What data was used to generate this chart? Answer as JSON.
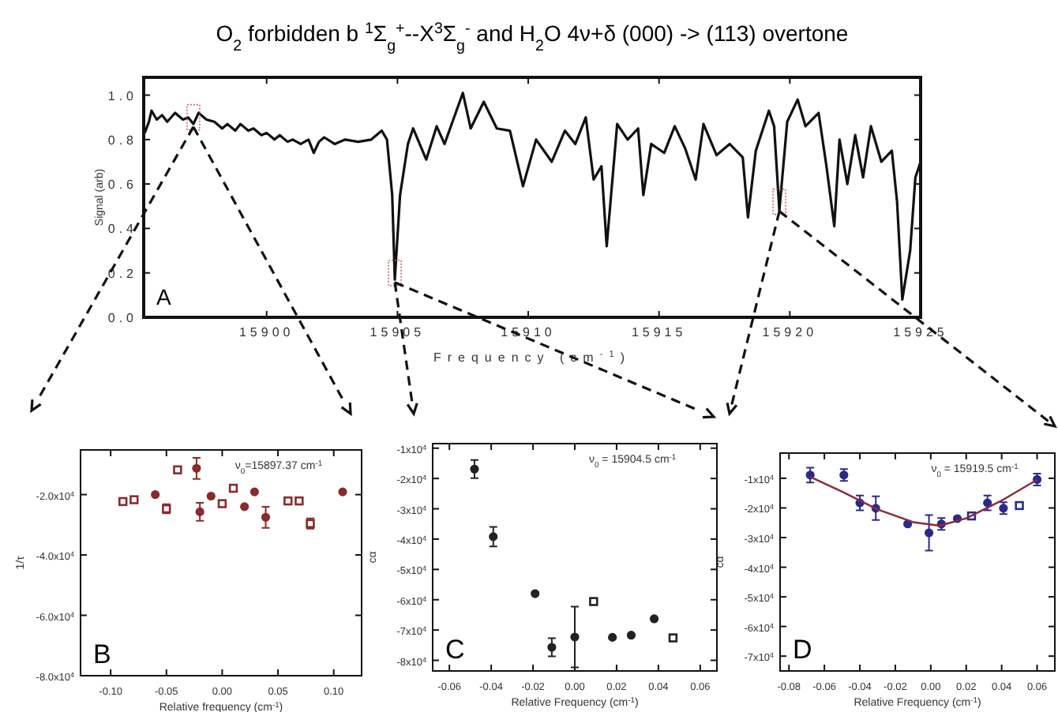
{
  "chart_data": [
    {
      "type": "line",
      "title": "O$_{2}$ forbidden b $^{1}$Σ$_{g}$$^{+}$--X$^{3}$Σ$_{g}$$^{-}$ and H$_{2}$O 4ν+δ  (000) -> (113) overtone",
      "xlabel": "Frequency (cm$^{-1}$)",
      "ylabel": "Signal (arb)",
      "xlim": [
        15895.3,
        15925
      ],
      "ylim": [
        0,
        1.08
      ],
      "xticks": [
        15900,
        15905,
        15910,
        15915,
        15920,
        15925
      ],
      "yticks": [
        {
          "value": 0,
          "label": "0.0"
        },
        {
          "value": 0.2,
          "label": "0.2"
        },
        {
          "value": 0.4,
          "label": "0.4"
        },
        {
          "value": 0.6,
          "label": "0.6"
        },
        {
          "value": 0.8,
          "label": "0.8"
        },
        {
          "value": 1,
          "label": "1.0"
        }
      ],
      "grid": false,
      "line_style": "solid",
      "annotations": [
        "A"
      ],
      "series": [
        {
          "color": "#111111",
          "x": [
            15895.34,
            15895.5,
            15895.6,
            15895.8,
            15896.0,
            15896.2,
            15896.5,
            15896.8,
            15897.0,
            15897.2,
            15897.4,
            15897.7,
            15898.0,
            15898.3,
            15898.5,
            15898.8,
            15899.0,
            15899.3,
            15899.5,
            15899.8,
            15900.0,
            15900.3,
            15900.5,
            15900.8,
            15901.0,
            15901.3,
            15901.6,
            15901.8,
            15902.0,
            15902.2,
            15902.6,
            15903.0,
            15903.5,
            15904.0,
            15904.4,
            15904.6,
            15904.8,
            15904.9,
            15905.1,
            15905.4,
            15905.6,
            15906.1,
            15906.5,
            15906.8,
            15907.5,
            15907.8,
            15908.3,
            15908.8,
            15909.3,
            15909.8,
            15910.3,
            15910.9,
            15911.4,
            15911.8,
            15912.2,
            15912.5,
            15912.8,
            15913.0,
            15913.4,
            15913.8,
            15914.2,
            15914.4,
            15914.7,
            15915.2,
            15915.6,
            15916.0,
            15916.4,
            15916.7,
            15917.2,
            15917.7,
            15918.2,
            15918.4,
            15918.7,
            15919.2,
            15919.4,
            15919.6,
            15919.9,
            15920.3,
            15920.6,
            15921.1,
            15921.4,
            15921.7,
            15921.9,
            15922.2,
            15922.5,
            15922.8,
            15923.1,
            15923.5,
            15923.9,
            15924.1,
            15924.3,
            15924.6,
            15924.8,
            15925.0
          ],
          "values": [
            0.83,
            0.88,
            0.93,
            0.89,
            0.91,
            0.88,
            0.92,
            0.89,
            0.9,
            0.87,
            0.92,
            0.89,
            0.88,
            0.85,
            0.87,
            0.84,
            0.87,
            0.84,
            0.85,
            0.82,
            0.83,
            0.8,
            0.82,
            0.79,
            0.8,
            0.78,
            0.8,
            0.74,
            0.79,
            0.81,
            0.78,
            0.8,
            0.79,
            0.8,
            0.84,
            0.8,
            0.55,
            0.17,
            0.55,
            0.78,
            0.85,
            0.71,
            0.86,
            0.78,
            1.01,
            0.85,
            0.97,
            0.85,
            0.84,
            0.59,
            0.8,
            0.7,
            0.84,
            0.78,
            0.9,
            0.62,
            0.68,
            0.32,
            0.87,
            0.8,
            0.85,
            0.55,
            0.78,
            0.74,
            0.86,
            0.76,
            0.62,
            0.87,
            0.73,
            0.78,
            0.72,
            0.45,
            0.75,
            0.93,
            0.86,
            0.48,
            0.88,
            0.98,
            0.86,
            0.92,
            0.68,
            0.41,
            0.8,
            0.6,
            0.82,
            0.63,
            0.86,
            0.7,
            0.75,
            0.52,
            0.08,
            0.3,
            0.63,
            0.7
          ]
        }
      ]
    },
    {
      "type": "scatter",
      "xlabel": "Relative frequency (cm$^{-1}$)",
      "ylabel": "1/τ",
      "xlim": [
        -0.127,
        0.125
      ],
      "ylim": [
        -80000,
        -5200
      ],
      "xticks": [
        {
          "value": -0.1,
          "label": "-0.10"
        },
        {
          "value": -0.05,
          "label": "-0.05"
        },
        {
          "value": 0,
          "label": "0.00"
        },
        {
          "value": 0.05,
          "label": "0.05"
        },
        {
          "value": 0.1,
          "label": "0.10"
        }
      ],
      "yticks": [
        {
          "value": -20000,
          "label": "-2.0x10$^{4}$"
        },
        {
          "value": -40000,
          "label": "-4.0x10$^{4}$"
        },
        {
          "value": -60000,
          "label": "-6.0x10$^{4}$"
        },
        {
          "value": -80000,
          "label": "-8.0x10$^{4}$"
        }
      ],
      "grid": false,
      "annotations": [
        "B",
        "ν$_{0}$=15897.37 cm$^{-1}$"
      ],
      "series": [
        {
          "color": "#8b2a2a",
          "marker": "square",
          "x": [
            -0.089,
            -0.079,
            -0.05,
            -0.04,
            0.0,
            0.01,
            0.059,
            0.069,
            0.079
          ],
          "values": [
            -22300,
            -21700,
            -24700,
            -11800,
            -23000,
            -17900,
            -22100,
            -22100,
            -29600
          ],
          "errors": [
            null,
            null,
            1500,
            null,
            null,
            null,
            null,
            null,
            1700
          ]
        },
        {
          "color": "#8b2a2a",
          "marker": "circle",
          "x": [
            -0.06,
            -0.023,
            -0.02,
            -0.01,
            0.02,
            0.029,
            0.039,
            0.108
          ],
          "values": [
            -20000,
            -11300,
            -25700,
            -20500,
            -24000,
            -19100,
            -27500,
            -19100
          ],
          "errors": [
            null,
            3500,
            3000,
            null,
            null,
            null,
            3500,
            null
          ]
        }
      ]
    },
    {
      "type": "scatter",
      "xlabel": "Relative Frequency (cm$^{-1}$)",
      "ylabel": "cα",
      "xlim": [
        -0.068,
        0.068
      ],
      "ylim": [
        -83500,
        -8500
      ],
      "xticks": [
        {
          "value": -0.06,
          "label": "-0.06"
        },
        {
          "value": -0.04,
          "label": "-0.04"
        },
        {
          "value": -0.02,
          "label": "-0.02"
        },
        {
          "value": 0,
          "label": "0.00"
        },
        {
          "value": 0.02,
          "label": "0.02"
        },
        {
          "value": 0.04,
          "label": "0.04"
        },
        {
          "value": 0.06,
          "label": "0.06"
        }
      ],
      "yticks": [
        {
          "value": -10000,
          "label": "-1x10$^{4}$"
        },
        {
          "value": -20000,
          "label": "-2x10$^{4}$"
        },
        {
          "value": -30000,
          "label": "-3x10$^{4}$"
        },
        {
          "value": -40000,
          "label": "-4x10$^{4}$"
        },
        {
          "value": -50000,
          "label": "-5x10$^{4}$"
        },
        {
          "value": -60000,
          "label": "-6x10$^{4}$"
        },
        {
          "value": -70000,
          "label": "-7x10$^{4}$"
        },
        {
          "value": -80000,
          "label": "-8x10$^{4}$"
        }
      ],
      "grid": false,
      "annotations": [
        "C",
        "ν$_{0}$ = 15904.5 cm$^{-1}$"
      ],
      "series": [
        {
          "color": "#222222",
          "marker": "square",
          "x": [
            0.009,
            0.047
          ],
          "values": [
            -60600,
            -72600
          ]
        },
        {
          "color": "#222222",
          "marker": "circle",
          "x": [
            -0.048,
            -0.039,
            -0.019,
            -0.011,
            0.0,
            0.018,
            0.027,
            0.038
          ],
          "values": [
            -16900,
            -39200,
            -58000,
            -75700,
            -72300,
            -72400,
            -71700,
            -66300
          ],
          "errors": [
            3000,
            3200,
            null,
            3000,
            10000,
            null,
            null,
            null
          ]
        }
      ]
    },
    {
      "type": "scatter",
      "xlabel": "Relative Frequency (cm$^{-1}$)",
      "ylabel": "cα",
      "xlim": [
        -0.085,
        0.07
      ],
      "ylim": [
        -75000,
        -1500
      ],
      "xticks": [
        {
          "value": -0.08,
          "label": "-0.08"
        },
        {
          "value": -0.06,
          "label": "-0.06"
        },
        {
          "value": -0.04,
          "label": "-0.04"
        },
        {
          "value": -0.02,
          "label": "-0.02"
        },
        {
          "value": 0,
          "label": "0.00"
        },
        {
          "value": 0.02,
          "label": "0.02"
        },
        {
          "value": 0.04,
          "label": "0.04"
        },
        {
          "value": 0.06,
          "label": "0.06"
        }
      ],
      "yticks": [
        {
          "value": -10000,
          "label": "-1x10$^{4}$"
        },
        {
          "value": -20000,
          "label": "-2x10$^{4}$"
        },
        {
          "value": -30000,
          "label": "-3x10$^{4}$"
        },
        {
          "value": -40000,
          "label": "-4x10$^{4}$"
        },
        {
          "value": -50000,
          "label": "-5x10$^{4}$"
        },
        {
          "value": -60000,
          "label": "-6x10$^{4}$"
        },
        {
          "value": -70000,
          "label": "-7x10$^{4}$"
        }
      ],
      "grid": false,
      "annotations": [
        "D",
        "ν$_{0}$ = 15919.5 cm$^{-1}$"
      ],
      "series": [
        {
          "color": "#2a2a8c",
          "marker": "square",
          "x": [
            0.023,
            0.05
          ],
          "values": [
            -22700,
            -19200
          ]
        },
        {
          "color": "#2a2a8c",
          "marker": "circle",
          "x": [
            -0.068,
            -0.049,
            -0.04,
            -0.031,
            -0.013,
            -0.001,
            0.006,
            0.015,
            0.032,
            0.041,
            0.06
          ],
          "values": [
            -8900,
            -8900,
            -18300,
            -20100,
            -25400,
            -28400,
            -25400,
            -23600,
            -18300,
            -20100,
            -10400
          ],
          "errors": [
            2500,
            2000,
            2500,
            4000,
            null,
            6000,
            2000,
            null,
            2500,
            2000,
            2000
          ]
        },
        {
          "type": "line",
          "color": "#8b2a3a",
          "x": [
            -0.068,
            -0.05,
            -0.03,
            -0.01,
            0.005,
            0.02,
            0.04,
            0.06
          ],
          "values": [
            -9500,
            -14500,
            -20500,
            -24800,
            -26000,
            -23500,
            -17500,
            -10500
          ]
        }
      ]
    }
  ]
}
